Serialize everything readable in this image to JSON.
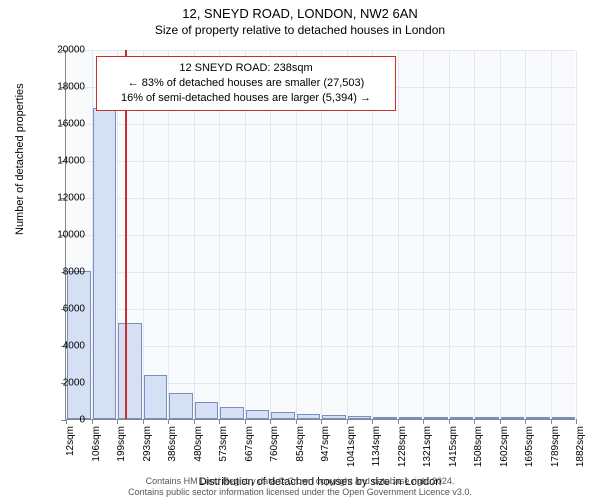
{
  "title": "12, SNEYD ROAD, LONDON, NW2 6AN",
  "subtitle": "Size of property relative to detached houses in London",
  "ylabel": "Number of detached properties",
  "xlabel": "Distribution of detached houses by size in London",
  "chart": {
    "type": "histogram",
    "background_color": "#f9fafc",
    "grid_color": "#e4e7ef",
    "axis_color": "#888888",
    "bar_fill": "#d6e0f5",
    "bar_border": "#7a8fc0",
    "marker_line_color": "#c8302c",
    "callout_border": "#c8302c",
    "ylim": [
      0,
      20000
    ],
    "ytick_step": 2000,
    "yticks": [
      0,
      2000,
      4000,
      6000,
      8000,
      10000,
      12000,
      14000,
      16000,
      18000,
      20000
    ],
    "xticks": [
      "12sqm",
      "106sqm",
      "199sqm",
      "293sqm",
      "386sqm",
      "480sqm",
      "573sqm",
      "667sqm",
      "760sqm",
      "854sqm",
      "947sqm",
      "1041sqm",
      "1134sqm",
      "1228sqm",
      "1321sqm",
      "1415sqm",
      "1508sqm",
      "1602sqm",
      "1695sqm",
      "1789sqm",
      "1882sqm"
    ],
    "bars": [
      8000,
      16800,
      5200,
      2400,
      1400,
      900,
      650,
      500,
      400,
      280,
      200,
      160,
      120,
      90,
      70,
      50,
      40,
      30,
      20,
      15
    ],
    "marker_value": 238,
    "x_range": [
      12,
      1976
    ],
    "callout": {
      "line1": "12 SNEYD ROAD: 238sqm",
      "line2": "← 83% of detached houses are smaller (27,503)",
      "line3": "16% of semi-detached houses are larger (5,394) →"
    }
  },
  "footer": {
    "line1": "Contains HM Land Registry data © Crown copyright and database right 2024.",
    "line2": "Contains public sector information licensed under the Open Government Licence v3.0."
  },
  "fonts": {
    "title_size": 13,
    "subtitle_size": 12,
    "axis_label_size": 11,
    "tick_size": 10,
    "callout_size": 11,
    "footer_size": 9
  }
}
